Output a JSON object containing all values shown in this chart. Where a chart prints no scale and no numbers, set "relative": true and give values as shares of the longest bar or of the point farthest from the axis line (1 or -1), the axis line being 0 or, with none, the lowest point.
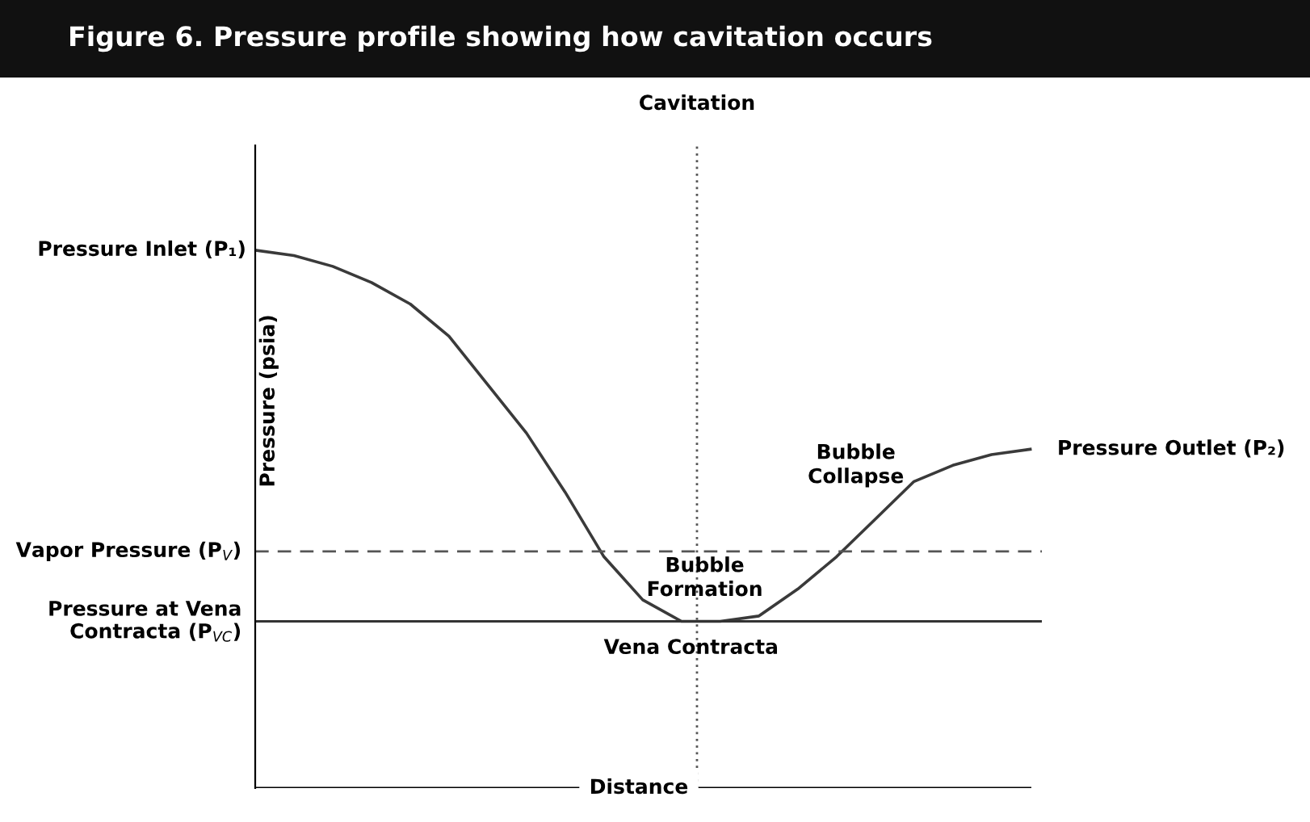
{
  "chart_data": {
    "type": "line",
    "relative": true,
    "title": "Figure 6. Pressure profile showing how cavitation occurs",
    "xlabel": "Distance",
    "ylabel": "Pressure (psia)",
    "categories": [
      null,
      null,
      null,
      null,
      null,
      null,
      null,
      null,
      null,
      null,
      null,
      null,
      null,
      null,
      null,
      null,
      null,
      null,
      null,
      null,
      null
    ],
    "series": [
      {
        "color": "#3a3a3a",
        "values": [
          1.0,
          0.99,
          0.97,
          0.94,
          0.9,
          0.84,
          0.75,
          0.66,
          0.55,
          0.43,
          0.35,
          0.31,
          0.31,
          0.32,
          0.37,
          0.43,
          0.5,
          0.57,
          0.6,
          0.62,
          0.63
        ]
      }
    ],
    "marker": "none",
    "line_style": "solid",
    "legend": false,
    "ref_lines": [
      {
        "axis": "y",
        "value": 0.44,
        "label": "Vapor Pressure (P$_{V}$)",
        "color": "#555555",
        "line_style": "dashed"
      },
      {
        "axis": "y",
        "value": 0.31,
        "label": "Pressure at Vena\nContracta (P$_{VC}$)",
        "color": "#333333",
        "line_style": "solid"
      }
    ],
    "annotations": [
      "Pressure Inlet (P₁)",
      "Pressure Outlet (P₂)",
      "Cavitation",
      "Bubble\nFormation",
      "Bubble\nCollapse",
      "Vena Contracta"
    ]
  }
}
